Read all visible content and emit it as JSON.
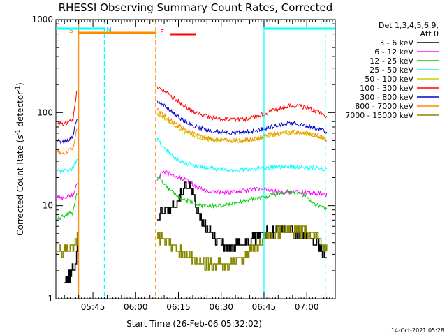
{
  "chart_data": {
    "type": "line",
    "title": "RHESSI Observing Summary Count Rates, Corrected",
    "xlabel": "Start Time (26-Feb-06 05:32:02)",
    "ylabel_base": "Corrected Count Rate (s",
    "ylabel_sup": "-1",
    "ylabel_mid": " detector",
    "ylabel_sup2": "-1",
    "ylabel_end": ")",
    "yscale": "log",
    "ylim": [
      1,
      1000
    ],
    "xlim_min": [
      0,
      98
    ],
    "x_tick_labels": [
      "05:45",
      "06:00",
      "06:15",
      "06:30",
      "06:45",
      "07:00"
    ],
    "x_tick_min": [
      13,
      28,
      43,
      58,
      73,
      88
    ],
    "y_tick_labels": [
      "1",
      "10",
      "100",
      "1000"
    ],
    "y_tick_values": [
      1,
      10,
      100,
      1000
    ],
    "legend_header": [
      "Det 1,3,4,5,6,9,",
      "Att 0"
    ],
    "legend_placement": "right",
    "footer": "14-Oct-2021 05:28",
    "data_gaps_min": [
      [
        8.0,
        35.0
      ]
    ],
    "series": [
      {
        "name": "3 - 6 keV",
        "color": "#000000",
        "x": [
          3,
          5,
          7,
          7.5,
          35.5,
          37,
          39,
          41,
          43,
          45,
          46,
          47,
          48,
          49,
          50,
          52,
          54,
          56,
          58,
          60,
          62,
          64,
          66,
          68,
          70,
          72,
          74,
          76,
          78,
          80,
          82,
          84,
          86,
          87,
          88,
          89,
          90,
          91,
          92,
          93,
          94,
          95
        ],
        "y": [
          1.5,
          1.8,
          2.5,
          4,
          7.5,
          8.5,
          9,
          10,
          12,
          15,
          17,
          16,
          13,
          10,
          8,
          6,
          5,
          4.5,
          4,
          3.5,
          3.5,
          3.8,
          4,
          4.2,
          4.5,
          5,
          5,
          5,
          5.5,
          5.5,
          5.5,
          5,
          4.8,
          4.7,
          4.5,
          4.4,
          4.3,
          4.1,
          4,
          3.5,
          2.9,
          2.7
        ]
      },
      {
        "name": "6 - 12 keV",
        "color": "#ff00ff",
        "x": [
          0.5,
          2,
          4,
          6,
          7.5,
          35.5,
          37,
          39,
          41,
          43,
          45,
          47,
          49,
          51,
          53,
          55,
          57,
          60,
          63,
          66,
          69,
          72,
          75,
          78,
          81,
          84,
          87,
          90,
          93,
          95
        ],
        "y": [
          12.5,
          12,
          12.5,
          13,
          18,
          19,
          22,
          23,
          21,
          20,
          19,
          18,
          16,
          15,
          14.5,
          14,
          14,
          14,
          14,
          14.5,
          15,
          15,
          14.5,
          14,
          14,
          14,
          14,
          13.5,
          13.5,
          13
        ]
      },
      {
        "name": "12 - 25 keV",
        "color": "#00cc00",
        "x": [
          0.5,
          2,
          4,
          6,
          7.5,
          35.5,
          37,
          39,
          41,
          43,
          45,
          47,
          49,
          51,
          53,
          55,
          58,
          61,
          64,
          67,
          70,
          73,
          76,
          79,
          82,
          85,
          88,
          90,
          92,
          94,
          95
        ],
        "y": [
          7.5,
          7.5,
          8,
          8.5,
          14,
          21,
          19,
          16,
          14,
          12.5,
          11.5,
          11,
          10.5,
          10,
          10,
          10,
          10,
          10.5,
          11,
          11.5,
          12,
          12.5,
          13,
          13.5,
          14,
          13.5,
          12.5,
          11,
          10,
          9.5,
          9
        ]
      },
      {
        "name": "25 - 50 keV",
        "color": "#00ffff",
        "x": [
          0.5,
          2,
          4,
          6,
          7.5,
          35.5,
          37,
          39,
          41,
          43,
          45,
          47,
          49,
          51,
          53,
          55,
          58,
          61,
          64,
          67,
          70,
          73,
          76,
          79,
          82,
          85,
          88,
          91,
          94,
          95
        ],
        "y": [
          24,
          23,
          24,
          25,
          33,
          52,
          45,
          39,
          34,
          31,
          29,
          28,
          27,
          26,
          25.5,
          25,
          24.5,
          24,
          24,
          24.5,
          25,
          25.5,
          26,
          26,
          26,
          26,
          25.5,
          25.5,
          25,
          25
        ]
      },
      {
        "name": "50 - 100 keV",
        "color": "#cccc00",
        "x": [
          35.5,
          37,
          39,
          41,
          43,
          45,
          47,
          49,
          52,
          55,
          58,
          61,
          64,
          67,
          70,
          73,
          76,
          79,
          82,
          85,
          88,
          91,
          94,
          95
        ],
        "y": [
          95,
          90,
          82,
          75,
          68,
          63,
          59,
          56,
          53,
          51,
          50,
          50,
          50,
          50.5,
          52,
          54,
          57,
          59,
          60,
          60,
          59,
          57,
          53,
          50
        ]
      },
      {
        "name": "100 - 300 keV",
        "color": "#ff0000",
        "x": [
          0.5,
          2,
          4,
          6,
          7,
          7.5,
          35.5,
          37,
          39,
          41,
          43,
          45,
          47,
          49,
          52,
          55,
          58,
          61,
          64,
          67,
          70,
          73,
          76,
          79,
          82,
          85,
          88,
          91,
          94,
          95
        ],
        "y": [
          78,
          76,
          78,
          85,
          140,
          180,
          185,
          175,
          160,
          145,
          130,
          118,
          108,
          100,
          93,
          88,
          85,
          84,
          84,
          86,
          90,
          97,
          105,
          113,
          118,
          118,
          113,
          105,
          95,
          88
        ]
      },
      {
        "name": "300 - 800 keV",
        "color": "#0000cc",
        "x": [
          0.5,
          2,
          4,
          6,
          7.5,
          35.5,
          37,
          39,
          41,
          43,
          45,
          47,
          49,
          52,
          55,
          58,
          61,
          64,
          67,
          70,
          73,
          76,
          79,
          82,
          85,
          88,
          91,
          94,
          95
        ],
        "y": [
          50,
          48,
          50,
          55,
          90,
          135,
          125,
          112,
          100,
          90,
          82,
          76,
          71,
          66,
          63,
          62,
          61,
          61,
          62,
          64,
          67,
          71,
          74,
          76,
          76,
          73,
          69,
          64,
          61
        ]
      },
      {
        "name": "800 - 7000 keV",
        "color": "#ff8800",
        "x": [
          0.5,
          2,
          4,
          6,
          7.5,
          35.5,
          37,
          39,
          41,
          43,
          45,
          47,
          49,
          52,
          55,
          58,
          61,
          64,
          67,
          70,
          73,
          76,
          79,
          82,
          85,
          88,
          91,
          94,
          95
        ],
        "y": [
          38,
          36,
          38,
          42,
          70,
          108,
          98,
          88,
          79,
          72,
          66,
          61,
          58,
          54,
          52,
          51,
          50,
          50,
          51,
          53,
          56,
          59,
          61,
          62,
          62,
          60,
          57,
          53,
          51
        ]
      },
      {
        "name": "7000 - 15000 keV",
        "color": "#888800",
        "x": [
          0.5,
          2,
          4,
          6,
          7.5,
          35.5,
          37,
          39,
          41,
          43,
          45,
          47,
          49,
          51,
          53,
          55,
          58,
          61,
          64,
          67,
          70,
          73,
          76,
          79,
          82,
          85,
          88,
          91,
          93,
          95
        ],
        "y": [
          3.3,
          3,
          3.3,
          3.5,
          4.5,
          4.8,
          4.3,
          4,
          3.5,
          3.2,
          3,
          2.8,
          2.6,
          2.5,
          2.4,
          2.3,
          2.3,
          2.4,
          2.6,
          3,
          3.6,
          4.3,
          5,
          5.5,
          5.5,
          5.3,
          5,
          4.5,
          4,
          3.5
        ]
      }
    ],
    "attenuator_lines": [
      {
        "x_min": 8.0,
        "color": "#ff8800",
        "style": "solid"
      },
      {
        "x_min": 35.0,
        "color": "#ff8800",
        "style": "dashed"
      }
    ],
    "night_lines": [
      {
        "x_min": 17.0,
        "color": "#00ffff",
        "style": "dashed"
      },
      {
        "x_min": 73.0,
        "color": "#00ffff",
        "style": "solid"
      },
      {
        "x_min": 94.5,
        "color": "#00ffff",
        "style": "dashed"
      }
    ],
    "interval_bars": [
      {
        "label": "S",
        "color": "#ff8800",
        "label_color": "#ff8800",
        "x_from": 8.0,
        "x_to": 35.0,
        "y": 1.5
      },
      {
        "label": "N",
        "color": "#00ffff",
        "label_color": "#00cccc",
        "x_from": 0,
        "x_to": 17.0,
        "y": 0
      },
      {
        "label": "",
        "color": "#00ffff",
        "label_color": "#00cccc",
        "x_from": 73.0,
        "x_to": 98,
        "y": 0
      },
      {
        "label": "F",
        "color": "#ff0000",
        "label_color": "#ff0000",
        "x_from": 40.0,
        "x_to": 49.0,
        "y": 2
      }
    ]
  }
}
